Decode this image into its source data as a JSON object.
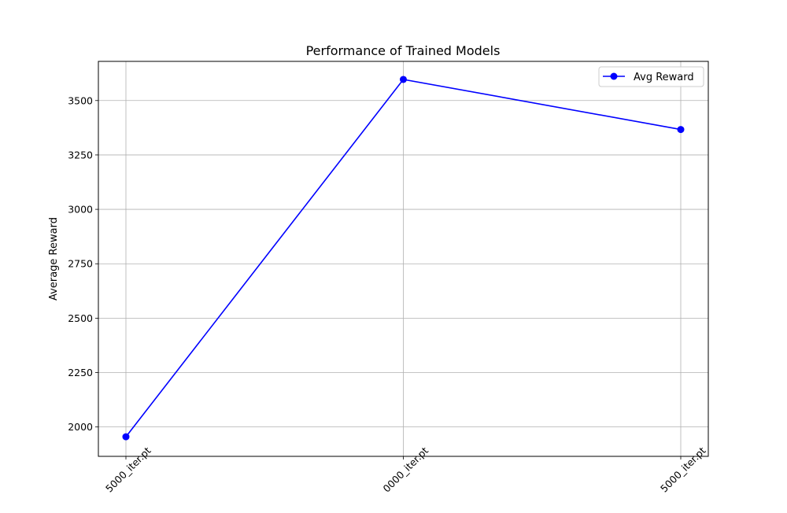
{
  "chart_data": {
    "type": "line",
    "title": "Performance of Trained Models",
    "xlabel": "",
    "ylabel": "Average Reward",
    "categories": [
      "5000_iter.pt",
      "0000_iter.pt",
      "5000_iter.pt"
    ],
    "series": [
      {
        "name": "Avg Reward",
        "values": [
          1955,
          3597,
          3367
        ],
        "color": "#0000ff",
        "marker": "circle"
      }
    ],
    "ylim": [
      1865,
      3680
    ],
    "yticks": [
      2000,
      2250,
      2500,
      2750,
      3000,
      3250,
      3500
    ],
    "grid": true,
    "legend_position": "top-right",
    "x_tick_rotation": -45
  }
}
